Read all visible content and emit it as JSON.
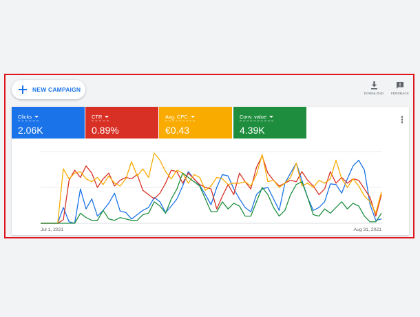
{
  "toolbar": {
    "new_campaign_label": "NEW CAMPAIGN",
    "download_label": "DOWNLOAD",
    "feedback_label": "FEEDBACK"
  },
  "metrics": [
    {
      "name": "Clicks",
      "value": "2.06K",
      "color": "#1a73e8"
    },
    {
      "name": "CTR",
      "value": "0.89%",
      "color": "#d93025"
    },
    {
      "name": "Avg. CPC",
      "value": "€0.43",
      "color": "#f9ab00"
    },
    {
      "name": "Conv. value",
      "value": "4.39K",
      "color": "#1e8e3e"
    }
  ],
  "icons": {
    "add": "plus-icon",
    "download": "download-icon",
    "feedback": "feedback-icon",
    "menu": "more-vert-icon",
    "dropdown": "caret-down-icon"
  },
  "frame_color": "#e0141c",
  "chart_data": {
    "type": "line",
    "x_tick_labels": [
      "Jul 1, 2021",
      "Aug 31, 2021"
    ],
    "grid": "horizontal",
    "ylim": [
      0,
      1
    ],
    "series": [
      {
        "color": "#1a73e8",
        "values": [
          0,
          0,
          0,
          0,
          0.22,
          0.02,
          0,
          0.48,
          0.2,
          0.34,
          0.1,
          0.18,
          0.28,
          0.42,
          0.17,
          0.15,
          0.06,
          0.12,
          0.18,
          0.22,
          0.36,
          0.3,
          0.15,
          0.24,
          0.34,
          0.52,
          0.72,
          0.62,
          0.53,
          0.4,
          0.26,
          0.5,
          0.68,
          0.66,
          0.48,
          0.34,
          0.22,
          0.16,
          0.4,
          0.48,
          0.5,
          0.34,
          0.18,
          0.56,
          0.7,
          0.84,
          0.6,
          0.36,
          0.18,
          0.22,
          0.3,
          0.55,
          0.54,
          0.42,
          0.62,
          0.8,
          0.88,
          0.74,
          0.26,
          0.04,
          0.06
        ]
      },
      {
        "color": "#d93025",
        "values": [
          0,
          0,
          0,
          0,
          0.05,
          0.6,
          0.74,
          0.64,
          0.8,
          0.7,
          0.5,
          0.62,
          0.7,
          0.52,
          0.6,
          0.64,
          0.62,
          0.68,
          0.46,
          0.4,
          0.34,
          0.42,
          0.56,
          0.74,
          0.72,
          0.56,
          0.7,
          0.62,
          0.54,
          0.5,
          0.48,
          0.2,
          0.38,
          0.54,
          0.4,
          0.7,
          0.58,
          0.48,
          0.78,
          0.94,
          0.7,
          0.6,
          0.52,
          0.56,
          0.6,
          0.58,
          0.72,
          0.6,
          0.52,
          0.4,
          0.48,
          0.72,
          0.56,
          0.64,
          0.56,
          0.62,
          0.6,
          0.48,
          0.36,
          0.1,
          0.4
        ]
      },
      {
        "color": "#f9ab00",
        "values": [
          0,
          0,
          0,
          0,
          0.76,
          0.62,
          0.7,
          0.72,
          0.62,
          0.58,
          0.64,
          0.54,
          0.66,
          0.56,
          0.52,
          0.62,
          0.86,
          0.66,
          0.76,
          0.64,
          0.98,
          0.88,
          0.72,
          0.62,
          0.74,
          0.7,
          0.56,
          0.68,
          0.64,
          0.46,
          0.52,
          0.64,
          0.62,
          0.54,
          0.56,
          0.56,
          0.58,
          0.52,
          0.68,
          0.96,
          0.58,
          0.6,
          0.5,
          0.56,
          0.64,
          0.84,
          0.52,
          0.56,
          0.5,
          0.6,
          0.56,
          0.62,
          0.88,
          0.62,
          0.5,
          0.62,
          0.52,
          0.38,
          0.3,
          0.14,
          0.44
        ]
      },
      {
        "color": "#1e8e3e",
        "values": [
          0,
          0,
          0,
          0,
          0,
          0,
          0,
          0.14,
          0.08,
          0.04,
          0.04,
          0.18,
          0.06,
          0.04,
          0.08,
          0.06,
          0.04,
          0.04,
          0.12,
          0.14,
          0.3,
          0.24,
          0.14,
          0.34,
          0.48,
          0.7,
          0.64,
          0.58,
          0.52,
          0.34,
          0.16,
          0.16,
          0.3,
          0.2,
          0.28,
          0.24,
          0.1,
          0.1,
          0.3,
          0.5,
          0.4,
          0.22,
          0.1,
          0.18,
          0.4,
          0.54,
          0.58,
          0.36,
          0.12,
          0.1,
          0.2,
          0.14,
          0.22,
          0.3,
          0.2,
          0.28,
          0.24,
          0.1,
          0.02,
          0.02,
          0.14
        ]
      }
    ]
  }
}
